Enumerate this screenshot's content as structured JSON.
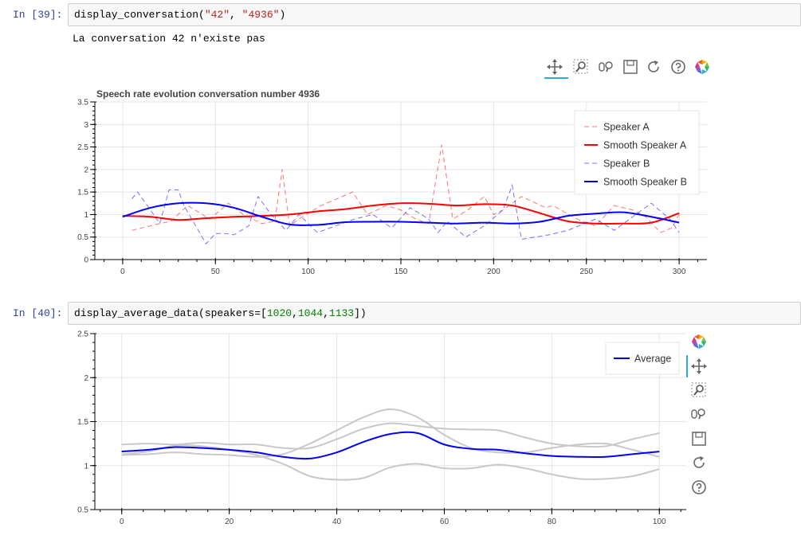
{
  "cells": [
    {
      "prompt": "In [39]:",
      "code": {
        "fn": "display_conversation(",
        "arg1": "\"42\"",
        "sep": ", ",
        "arg2": "\"4936\"",
        "close": ")"
      },
      "output_text": "La conversation 42 n'existe pas"
    },
    {
      "prompt": "In [40]:",
      "code": {
        "fn": "display_average_data(speakers=[",
        "n1": "1020",
        "c1": ",",
        "n2": "1044",
        "c2": ",",
        "n3": "1133",
        "close": "])"
      }
    }
  ],
  "toolbar_icons": [
    "pan-icon",
    "box-zoom-icon",
    "wheel-zoom-icon",
    "save-icon",
    "reset-icon",
    "help-icon",
    "bokeh-logo-icon"
  ],
  "colors": {
    "speaker_a": "#ff0000",
    "speaker_b": "#0000ff",
    "average": "#0000ff",
    "individual": "#c8c8c8",
    "prompt": "#303f9f",
    "active_tool": "#26aae1"
  },
  "chart_data": [
    {
      "type": "line",
      "title": "Speech rate evolution conversation number 4936",
      "xlabel": "",
      "ylabel": "",
      "xlim": [
        -15,
        315
      ],
      "ylim": [
        0,
        3.5
      ],
      "x_ticks": [
        0,
        50,
        100,
        150,
        200,
        250,
        300
      ],
      "y_ticks": [
        0,
        0.5,
        1,
        1.5,
        2,
        2.5,
        3,
        3.5
      ],
      "x_tick_labels": [
        "0",
        "50",
        "100",
        "150",
        "200",
        "250",
        "300"
      ],
      "y_tick_labels": [
        "0",
        "0.5",
        "1",
        "1.5",
        "2",
        "2.5",
        "3",
        "3.5"
      ],
      "grid": true,
      "legend_position": "top-right",
      "legend": [
        "Speaker A",
        "Smooth Speaker A",
        "Speaker B",
        "Smooth Speaker B"
      ],
      "series": [
        {
          "name": "Speaker A",
          "style": "dashed",
          "color": "#ff0000",
          "x": [
            5,
            20,
            26,
            35,
            47,
            57,
            65,
            75,
            82,
            86,
            90,
            95,
            107,
            124,
            132,
            142,
            150,
            158,
            165,
            172,
            178,
            186,
            195,
            200,
            205,
            215,
            228,
            232,
            245,
            255,
            265,
            275,
            282,
            290,
            296,
            300
          ],
          "y": [
            0.65,
            0.8,
            0.85,
            1.2,
            0.9,
            1.25,
            1.0,
            0.8,
            0.85,
            2.0,
            0.75,
            0.9,
            1.2,
            1.5,
            1.0,
            1.2,
            1.1,
            0.9,
            0.8,
            2.55,
            0.9,
            1.1,
            1.4,
            1.0,
            1.1,
            1.4,
            1.15,
            1.2,
            0.9,
            0.75,
            1.2,
            1.1,
            0.95,
            0.6,
            0.7,
            1.0
          ]
        },
        {
          "name": "Smooth Speaker A",
          "style": "solid",
          "color": "#ff0000",
          "x": [
            0,
            15,
            30,
            45,
            60,
            75,
            90,
            105,
            120,
            135,
            150,
            165,
            180,
            195,
            210,
            225,
            240,
            255,
            270,
            285,
            300
          ],
          "y": [
            0.97,
            0.95,
            0.88,
            0.92,
            0.95,
            0.97,
            1.0,
            1.07,
            1.12,
            1.2,
            1.25,
            1.24,
            1.2,
            1.23,
            1.2,
            1.03,
            0.85,
            0.8,
            0.8,
            0.82,
            1.03
          ]
        },
        {
          "name": "Speaker B",
          "style": "dashed",
          "color": "#0000ff",
          "x": [
            5,
            8,
            15,
            20,
            25,
            30,
            33,
            45,
            50,
            55,
            60,
            68,
            73,
            80,
            88,
            95,
            100,
            105,
            115,
            125,
            135,
            145,
            155,
            165,
            170,
            175,
            185,
            195,
            205,
            210,
            215,
            230,
            240,
            255,
            265,
            275,
            285,
            295,
            300
          ],
          "y": [
            1.35,
            1.5,
            1.1,
            0.8,
            1.55,
            1.55,
            1.2,
            0.35,
            0.58,
            0.58,
            0.55,
            0.75,
            1.4,
            1.0,
            0.65,
            1.0,
            0.8,
            0.6,
            0.75,
            0.9,
            1.0,
            0.7,
            1.15,
            0.9,
            0.6,
            0.85,
            0.5,
            0.75,
            1.1,
            1.65,
            0.45,
            0.55,
            0.65,
            0.9,
            0.65,
            0.95,
            1.25,
            0.9,
            0.6
          ]
        },
        {
          "name": "Smooth Speaker B",
          "style": "solid",
          "color": "#0000ff",
          "x": [
            0,
            15,
            30,
            45,
            60,
            75,
            90,
            105,
            120,
            135,
            150,
            165,
            180,
            195,
            210,
            225,
            240,
            255,
            270,
            285,
            300
          ],
          "y": [
            0.95,
            1.15,
            1.25,
            1.25,
            1.15,
            0.95,
            0.78,
            0.77,
            0.83,
            0.84,
            0.84,
            0.82,
            0.8,
            0.82,
            0.8,
            0.84,
            0.97,
            1.02,
            1.05,
            0.95,
            0.82
          ]
        }
      ]
    },
    {
      "type": "line",
      "title": "",
      "xlabel": "",
      "ylabel": "",
      "xlim": [
        -5,
        105
      ],
      "ylim": [
        0.5,
        2.5
      ],
      "x_ticks": [
        0,
        20,
        40,
        60,
        80,
        100
      ],
      "y_ticks": [
        0.5,
        1,
        1.5,
        2,
        2.5
      ],
      "x_tick_labels": [
        "0",
        "20",
        "40",
        "60",
        "80",
        "100"
      ],
      "y_tick_labels": [
        "0.5",
        "1",
        "1.5",
        "2",
        "2.5"
      ],
      "grid": true,
      "legend_position": "top-right",
      "legend": [
        "Average"
      ],
      "series": [
        {
          "name": "Average",
          "color": "#0000ff",
          "x": [
            0,
            5,
            10,
            15,
            20,
            25,
            30,
            35,
            40,
            45,
            50,
            55,
            60,
            65,
            70,
            75,
            80,
            85,
            90,
            95,
            100
          ],
          "y": [
            1.16,
            1.18,
            1.21,
            1.2,
            1.18,
            1.15,
            1.1,
            1.08,
            1.15,
            1.27,
            1.36,
            1.37,
            1.24,
            1.19,
            1.18,
            1.14,
            1.11,
            1.1,
            1.1,
            1.13,
            1.16
          ]
        },
        {
          "color": "#c8c8c8",
          "x": [
            0,
            5,
            10,
            15,
            20,
            25,
            30,
            35,
            40,
            45,
            50,
            55,
            60,
            65,
            70,
            75,
            80,
            85,
            90,
            95,
            100
          ],
          "y": [
            1.24,
            1.25,
            1.24,
            1.26,
            1.24,
            1.24,
            1.2,
            1.2,
            1.3,
            1.42,
            1.48,
            1.45,
            1.42,
            1.41,
            1.4,
            1.32,
            1.25,
            1.22,
            1.22,
            1.3,
            1.37
          ]
        },
        {
          "color": "#c8c8c8",
          "x": [
            0,
            5,
            10,
            15,
            20,
            25,
            30,
            35,
            40,
            45,
            50,
            55,
            60,
            65,
            70,
            75,
            80,
            85,
            90,
            95,
            100
          ],
          "y": [
            1.12,
            1.13,
            1.15,
            1.13,
            1.12,
            1.1,
            1.13,
            1.25,
            1.4,
            1.55,
            1.64,
            1.55,
            1.35,
            1.2,
            1.15,
            1.15,
            1.2,
            1.24,
            1.25,
            1.18,
            1.1
          ]
        },
        {
          "color": "#c8c8c8",
          "x": [
            0,
            5,
            10,
            15,
            20,
            25,
            30,
            35,
            40,
            45,
            50,
            55,
            60,
            65,
            70,
            75,
            80,
            85,
            90,
            95,
            100
          ],
          "y": [
            1.13,
            1.16,
            1.23,
            1.22,
            1.18,
            1.12,
            1.02,
            0.88,
            0.84,
            0.86,
            0.98,
            1.02,
            0.97,
            0.97,
            1.01,
            0.97,
            0.9,
            0.85,
            0.85,
            0.88,
            0.96
          ]
        }
      ]
    }
  ]
}
